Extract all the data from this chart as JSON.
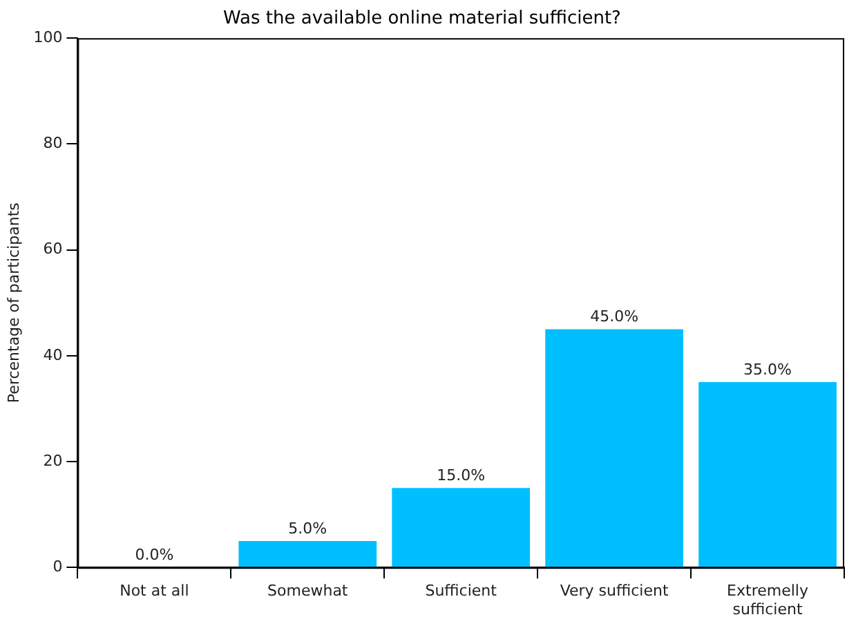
{
  "chart_data": {
    "type": "bar",
    "title": "Was the available online material sufficient?",
    "ylabel": "Percentage of participants",
    "categories": [
      "Not at all",
      "Somewhat",
      "Sufficient",
      "Very sufficient",
      "Extremelly sufficient"
    ],
    "values": [
      0,
      5,
      15,
      45,
      35
    ],
    "color": "#00bfff",
    "value_labels": [
      "0.0%",
      "5.0%",
      "15.0%",
      "45.0%",
      "35.0%"
    ],
    "ylim": [
      0,
      100
    ],
    "yticks": [
      0,
      20,
      40,
      60,
      80,
      100
    ],
    "grid": false,
    "legend": false
  }
}
